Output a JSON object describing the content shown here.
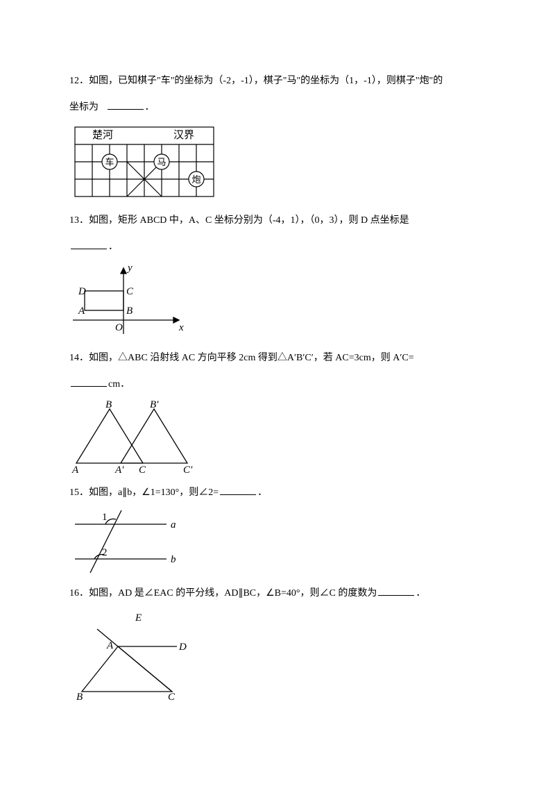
{
  "q12": {
    "text_a": "12．如图，已知棋子\"车\"的坐标为（-2，-1），棋子\"马\"的坐标为（1，-1），则棋子\"炮\"的",
    "text_b": "坐标为",
    "board": {
      "left_label": "楚河",
      "right_label": "汉界",
      "pieces": {
        "che": "车",
        "ma": "马",
        "pao": "炮"
      },
      "cols": 8,
      "rows": 4,
      "cell": 25,
      "stroke": "#000"
    }
  },
  "q13": {
    "text": "13．如图，矩形 ABCD 中，A、C 坐标分别为（-4，1），（0，3），则 D 点坐标是",
    "labels": {
      "A": "A",
      "B": "B",
      "C": "C",
      "D": "D",
      "O": "O",
      "x": "x",
      "y": "y"
    }
  },
  "q14": {
    "text_a": "14．如图，△ABC 沿射线 AC 方向平移 2cm 得到△A′B′C′，若 AC=3cm，则 A′C=",
    "unit": "cm．",
    "labels": {
      "A": "A",
      "Ap": "A′",
      "B": "B",
      "Bp": "B′",
      "C": "C",
      "Cp": "C′"
    }
  },
  "q15": {
    "text": "15．如图，a∥b，∠1=130°，则∠2=",
    "labels": {
      "one": "1",
      "two": "2",
      "a": "a",
      "b": "b"
    }
  },
  "q16": {
    "text": "16．如图，AD 是∠EAC 的平分线，AD∥BC，∠B=40°，则∠C 的度数为",
    "labels": {
      "A": "A",
      "B": "B",
      "C": "C",
      "D": "D",
      "E": "E"
    }
  },
  "style": {
    "stroke": "#000000",
    "fill": "#ffffff",
    "font": "italic 15px 'Times New Roman', serif",
    "font_upright": "15px 'SimSun', serif",
    "font_small": "14px 'SimSun', serif"
  }
}
